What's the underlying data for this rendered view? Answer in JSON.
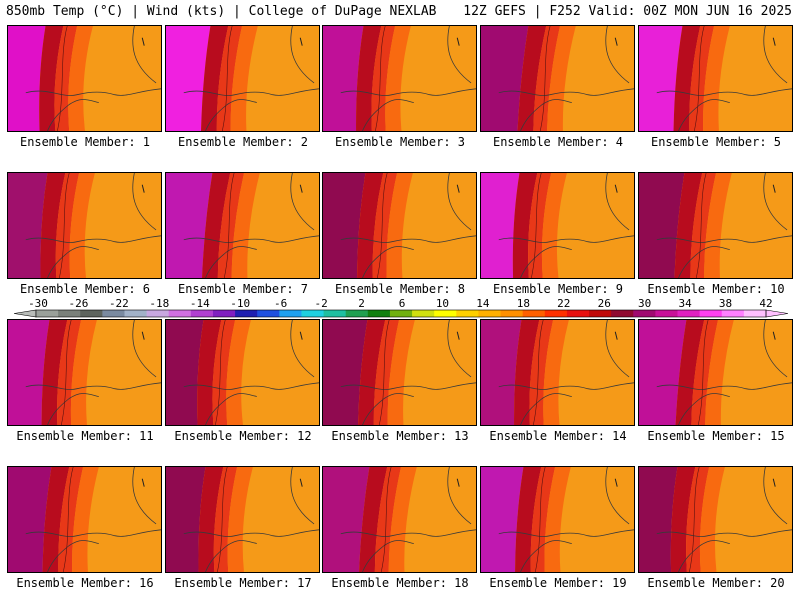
{
  "header": {
    "left": "850mb Temp (°C) | Wind (kts) | College of DuPage NEXLAB",
    "right": "12Z GEFS | F252 Valid: 00Z MON JUN 16 2025"
  },
  "members": [
    {
      "label": "Ensemble Member: 1",
      "west": "#e010c8"
    },
    {
      "label": "Ensemble Member: 2",
      "west": "#f020e0"
    },
    {
      "label": "Ensemble Member: 3",
      "west": "#c01098"
    },
    {
      "label": "Ensemble Member: 4",
      "west": "#a00a70"
    },
    {
      "label": "Ensemble Member: 5",
      "west": "#e820d8"
    },
    {
      "label": "Ensemble Member: 6",
      "west": "#a0106c"
    },
    {
      "label": "Ensemble Member: 7",
      "west": "#c018b0"
    },
    {
      "label": "Ensemble Member: 8",
      "west": "#900a50"
    },
    {
      "label": "Ensemble Member: 9",
      "west": "#e020d0"
    },
    {
      "label": "Ensemble Member: 10",
      "west": "#900a50"
    },
    {
      "label": "Ensemble Member: 11",
      "west": "#c01098"
    },
    {
      "label": "Ensemble Member: 12",
      "west": "#900a50"
    },
    {
      "label": "Ensemble Member: 13",
      "west": "#900a50"
    },
    {
      "label": "Ensemble Member: 14",
      "west": "#b0107c"
    },
    {
      "label": "Ensemble Member: 15",
      "west": "#c01098"
    },
    {
      "label": "Ensemble Member: 16",
      "west": "#a00a70"
    },
    {
      "label": "Ensemble Member: 17",
      "west": "#900a50"
    },
    {
      "label": "Ensemble Member: 18",
      "west": "#b0107c"
    },
    {
      "label": "Ensemble Member: 19",
      "west": "#c018b0"
    },
    {
      "label": "Ensemble Member: 20",
      "west": "#900a50"
    }
  ],
  "colorbar": {
    "ticks": [
      "-30",
      "-26",
      "-22",
      "-18",
      "-14",
      "-10",
      "-6",
      "-2",
      "2",
      "6",
      "10",
      "14",
      "18",
      "22",
      "26",
      "30",
      "34",
      "38",
      "42"
    ],
    "colors": [
      "#9aa09a",
      "#7a807a",
      "#5e645e",
      "#7a8aa0",
      "#a2b2c8",
      "#c8a8e0",
      "#d070e0",
      "#b040d0",
      "#8020c0",
      "#2020b0",
      "#2050e0",
      "#20a0f0",
      "#20d0e0",
      "#20c0a0",
      "#20a050",
      "#108010",
      "#70b010",
      "#d0e010",
      "#ffff00",
      "#ffd000",
      "#ffb000",
      "#ff9000",
      "#ff6000",
      "#ff3000",
      "#e81010",
      "#c00808",
      "#900a30",
      "#a00a70",
      "#c81098",
      "#e020c0",
      "#ff40f0",
      "#ff80ff",
      "#ffc0ff"
    ]
  }
}
